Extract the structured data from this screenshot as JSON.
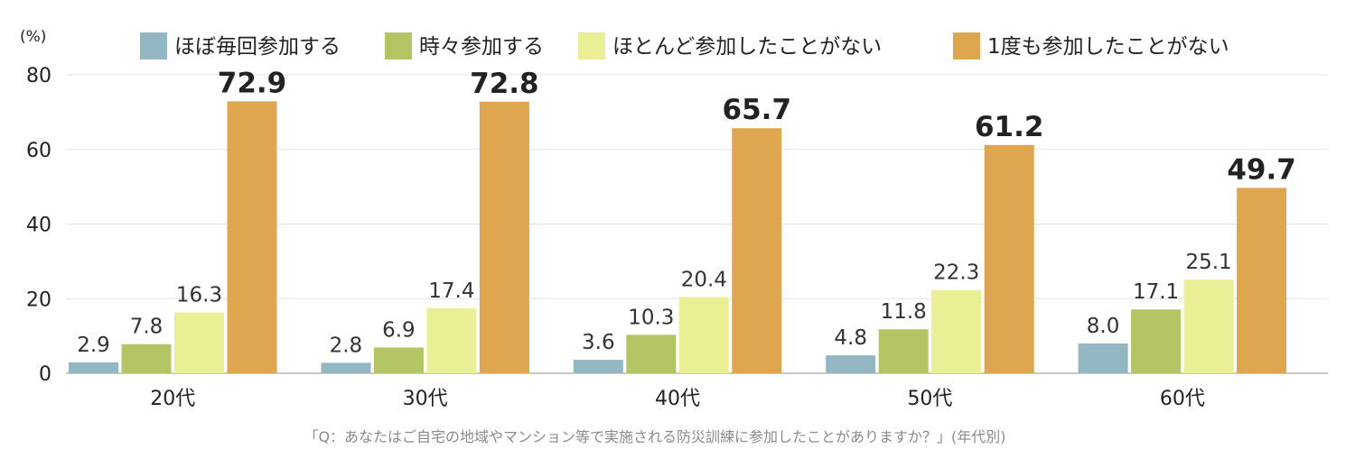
{
  "chart_data": {
    "type": "bar",
    "unit_label": "(%)",
    "categories": [
      "20代",
      "30代",
      "40代",
      "50代",
      "60代"
    ],
    "series": [
      {
        "name": "ほぼ毎回参加する",
        "color": "#92b7c2",
        "values": [
          2.9,
          2.8,
          3.6,
          4.8,
          8.0
        ]
      },
      {
        "name": "時々参加する",
        "color": "#b3c464",
        "values": [
          7.8,
          6.9,
          10.3,
          11.8,
          17.1
        ]
      },
      {
        "name": "ほとんど参加したことがない",
        "color": "#eaee94",
        "values": [
          16.3,
          17.4,
          20.4,
          22.3,
          25.1
        ]
      },
      {
        "name": "1度も参加したことがない",
        "color": "#dda64f",
        "values": [
          72.9,
          72.8,
          65.7,
          61.2,
          49.7
        ]
      }
    ],
    "value_labels": [
      [
        "2.9",
        "2.8",
        "3.6",
        "4.8",
        "8.0"
      ],
      [
        "7.8",
        "6.9",
        "10.3",
        "11.8",
        "17.1"
      ],
      [
        "16.3",
        "17.4",
        "20.4",
        "22.3",
        "25.1"
      ],
      [
        "72.9",
        "72.8",
        "65.7",
        "61.2",
        "49.7"
      ]
    ],
    "yticks": [
      "0",
      "20",
      "40",
      "60",
      "80"
    ],
    "ytick_values": [
      0,
      20,
      40,
      60,
      80
    ],
    "ylim": [
      0,
      80
    ],
    "grid": true,
    "legend_position": "top",
    "caption": "「Q：あなたはご自宅の地域やマンション等で実施される防災訓練に参加したことがありますか？」(年代別)"
  }
}
